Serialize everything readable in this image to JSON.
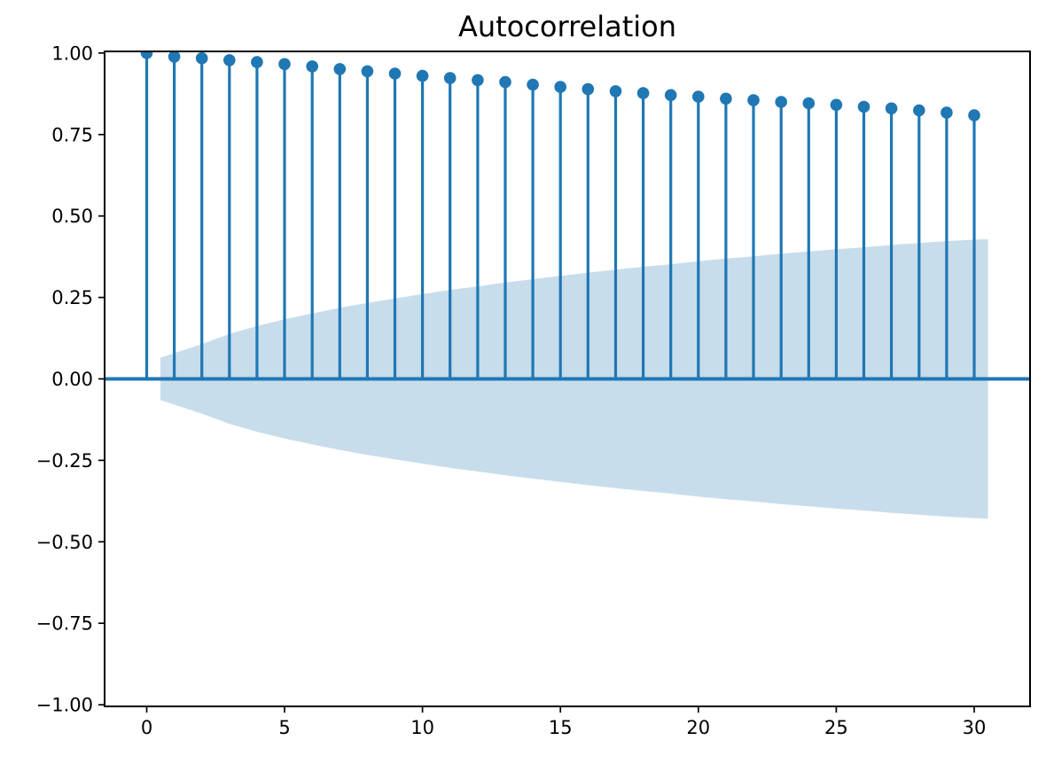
{
  "chart_data": {
    "type": "stem",
    "title": "Autocorrelation",
    "x": [
      0,
      1,
      2,
      3,
      4,
      5,
      6,
      7,
      8,
      9,
      10,
      11,
      12,
      13,
      14,
      15,
      16,
      17,
      18,
      19,
      20,
      21,
      22,
      23,
      24,
      25,
      26,
      27,
      28,
      29,
      30
    ],
    "acf": [
      1.0,
      0.989,
      0.984,
      0.978,
      0.972,
      0.966,
      0.959,
      0.951,
      0.944,
      0.937,
      0.93,
      0.923,
      0.917,
      0.911,
      0.903,
      0.896,
      0.889,
      0.883,
      0.877,
      0.871,
      0.866,
      0.86,
      0.855,
      0.85,
      0.846,
      0.841,
      0.835,
      0.83,
      0.824,
      0.817,
      0.809
    ],
    "confidence_band": {
      "x": [
        0.5,
        2,
        3,
        4,
        5,
        6,
        7,
        8,
        9,
        10,
        11,
        12,
        13,
        14,
        15,
        16,
        17,
        18,
        19,
        20,
        21,
        22,
        23,
        24,
        25,
        26,
        27,
        28,
        29,
        30.5
      ],
      "half_width": [
        0.065,
        0.107,
        0.138,
        0.162,
        0.183,
        0.201,
        0.218,
        0.233,
        0.247,
        0.26,
        0.273,
        0.284,
        0.296,
        0.306,
        0.316,
        0.326,
        0.335,
        0.344,
        0.352,
        0.361,
        0.369,
        0.376,
        0.384,
        0.391,
        0.398,
        0.404,
        0.411,
        0.417,
        0.423,
        0.429
      ],
      "centered_at": 0
    },
    "xtick_values": [
      0,
      5,
      10,
      15,
      20,
      25,
      30
    ],
    "xtick_labels": [
      "0",
      "5",
      "10",
      "15",
      "20",
      "25",
      "30"
    ],
    "ytick_values": [
      1.0,
      0.75,
      0.5,
      0.25,
      0.0,
      -0.25,
      -0.5,
      -0.75,
      -1.0
    ],
    "ytick_labels": [
      "1.00",
      "0.75",
      "0.50",
      "0.25",
      "0.00",
      "−0.25",
      "−0.50",
      "−0.75",
      "−1.00"
    ],
    "xlim": [
      -1.525,
      32.025
    ],
    "ylim": [
      -1.005,
      1.005
    ],
    "grid": false,
    "legend": "none",
    "colors": {
      "stem": "#1f77b4",
      "marker": "#1f77b4",
      "zero_line": "#1f77b4",
      "band": "#1f77b4",
      "band_opacity": 0.25,
      "axis": "#000000",
      "text": "#000000",
      "background": "#ffffff"
    }
  }
}
